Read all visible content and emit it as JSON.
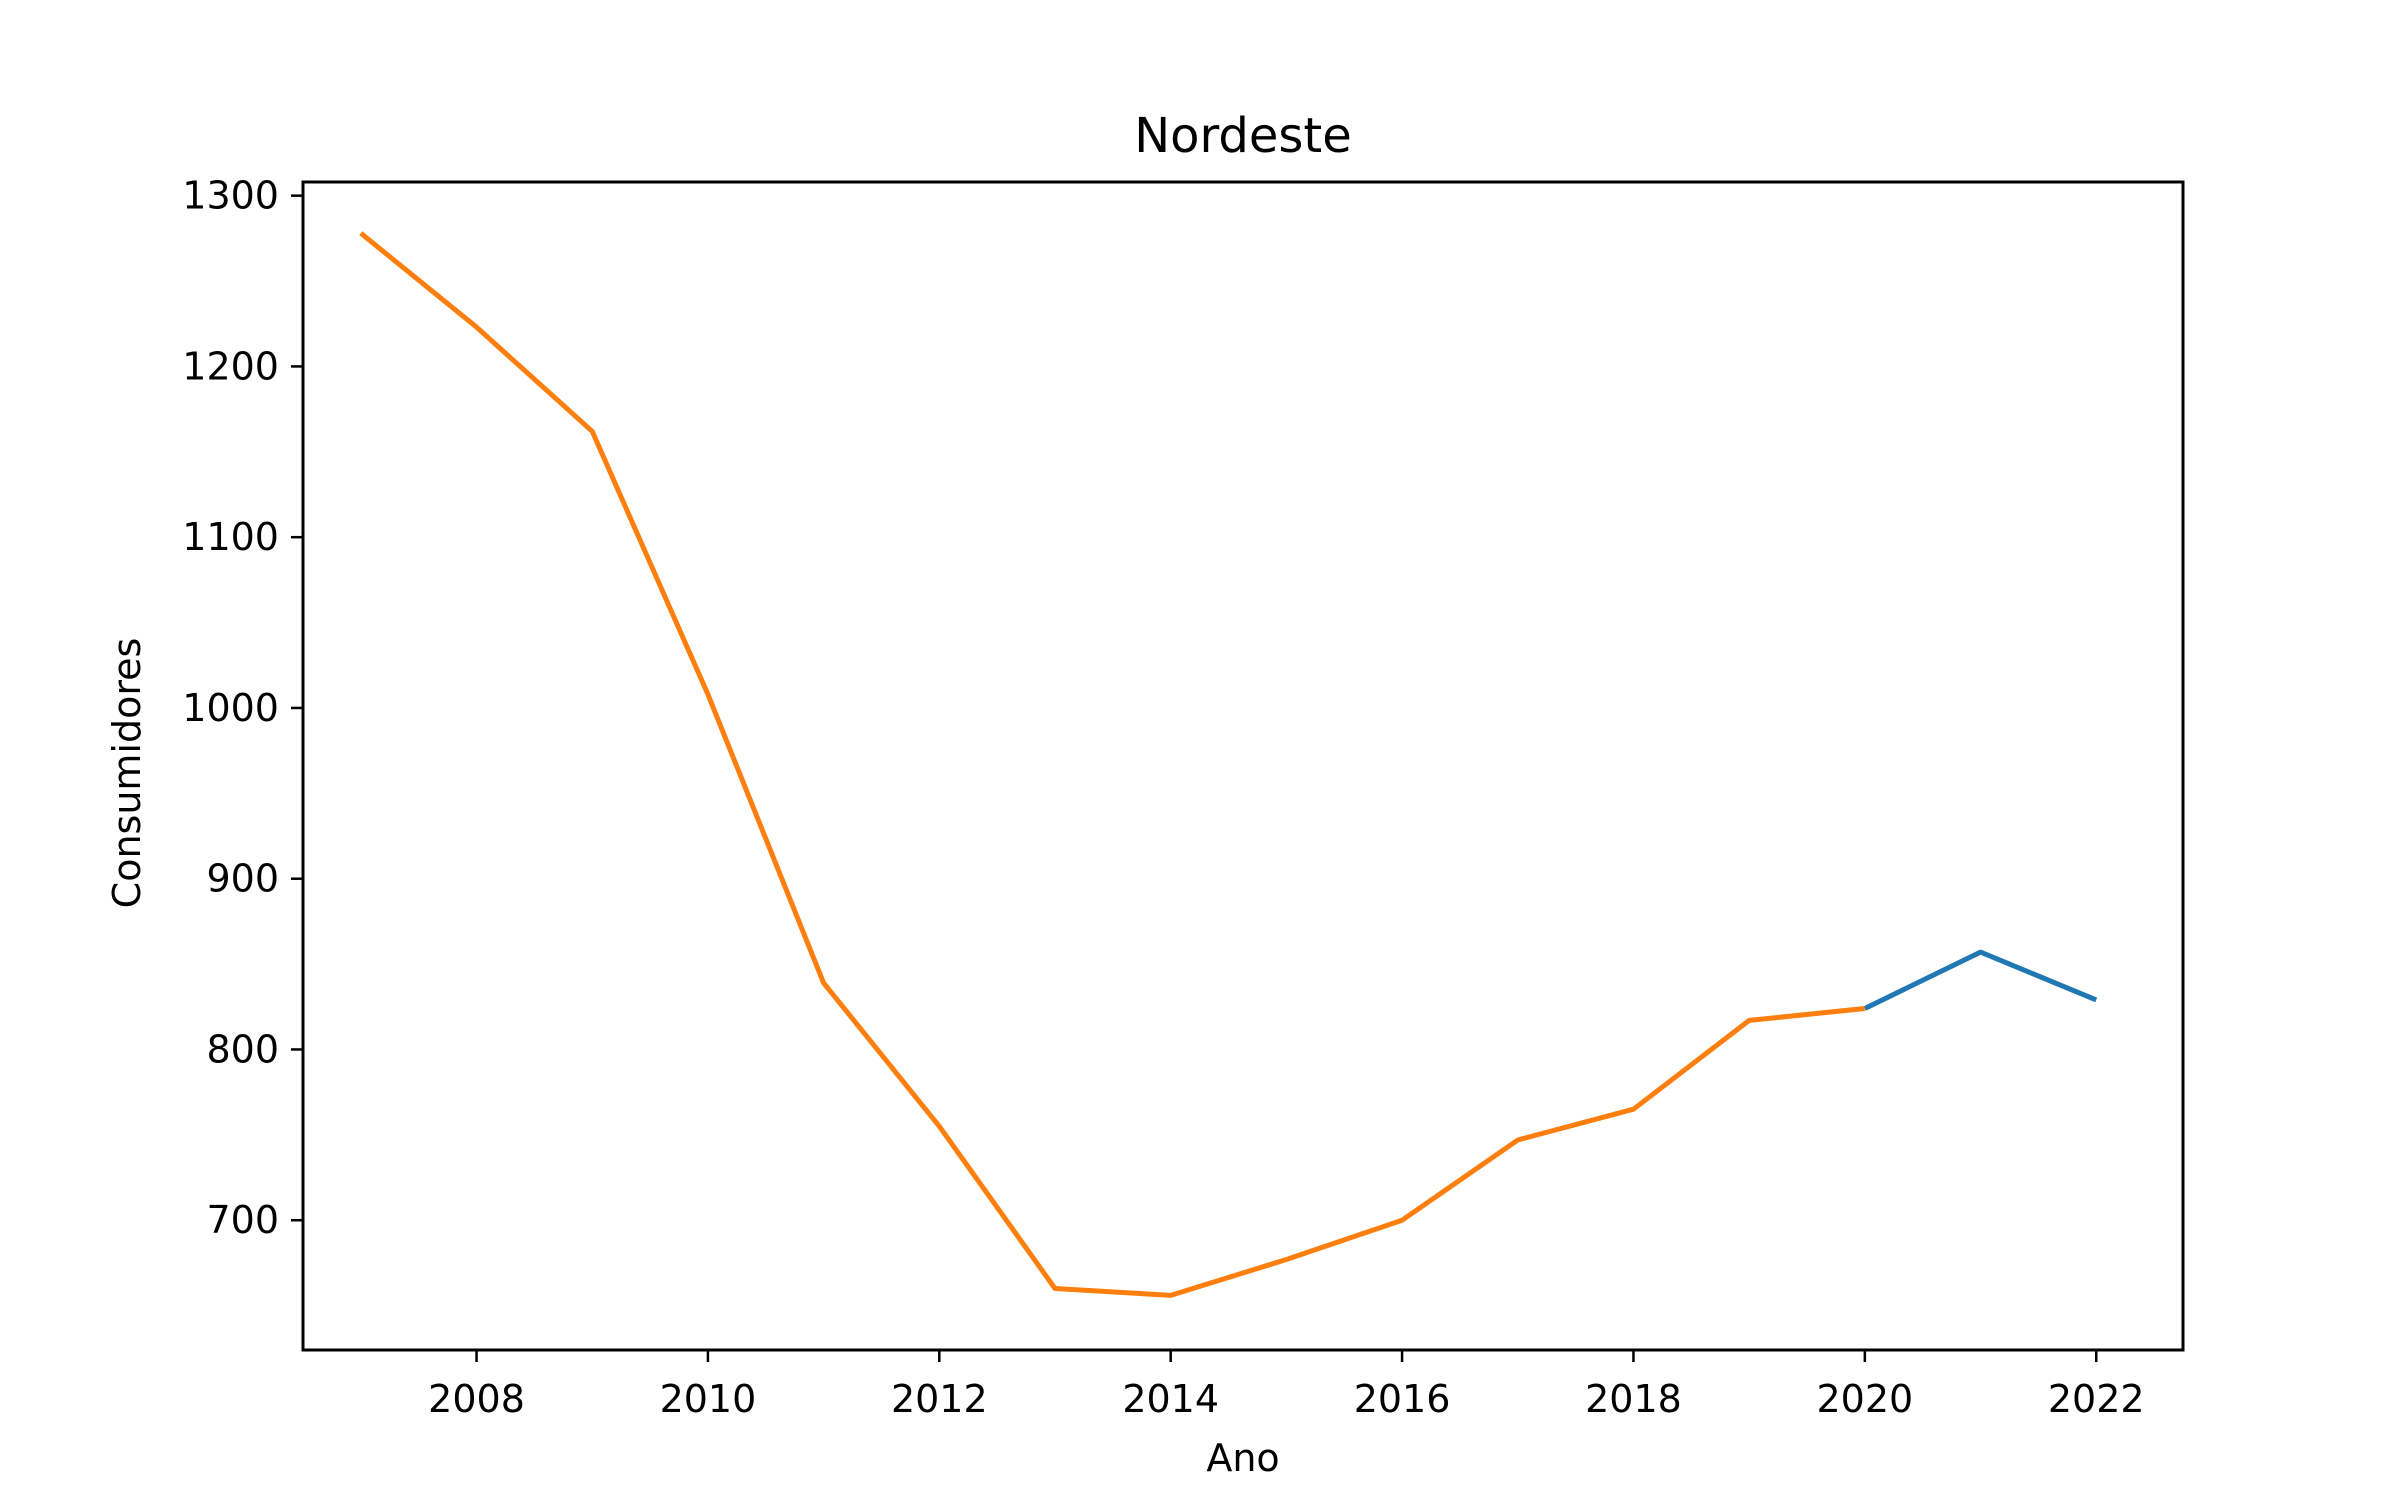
{
  "chart_data": {
    "type": "line",
    "title": "Nordeste",
    "xlabel": "Ano",
    "ylabel": "Consumidores",
    "xlim": [
      2006.5,
      2022.75
    ],
    "ylim": [
      624,
      1308
    ],
    "xticks": [
      2008,
      2010,
      2012,
      2014,
      2016,
      2018,
      2020,
      2022
    ],
    "yticks": [
      700,
      800,
      900,
      1000,
      1100,
      1200,
      1300
    ],
    "grid": false,
    "series": [
      {
        "color": "#1f77b4",
        "x": [
          2020,
          2021,
          2022
        ],
        "y": [
          824,
          857,
          829
        ]
      },
      {
        "color": "#ff7f0e",
        "x": [
          2007,
          2008,
          2009,
          2010,
          2011,
          2012,
          2013,
          2014,
          2015,
          2016,
          2017,
          2018,
          2019,
          2020
        ],
        "y": [
          1278,
          1223,
          1162,
          1008,
          839,
          755,
          660,
          656,
          677,
          700,
          747,
          765,
          817,
          824
        ]
      }
    ]
  }
}
